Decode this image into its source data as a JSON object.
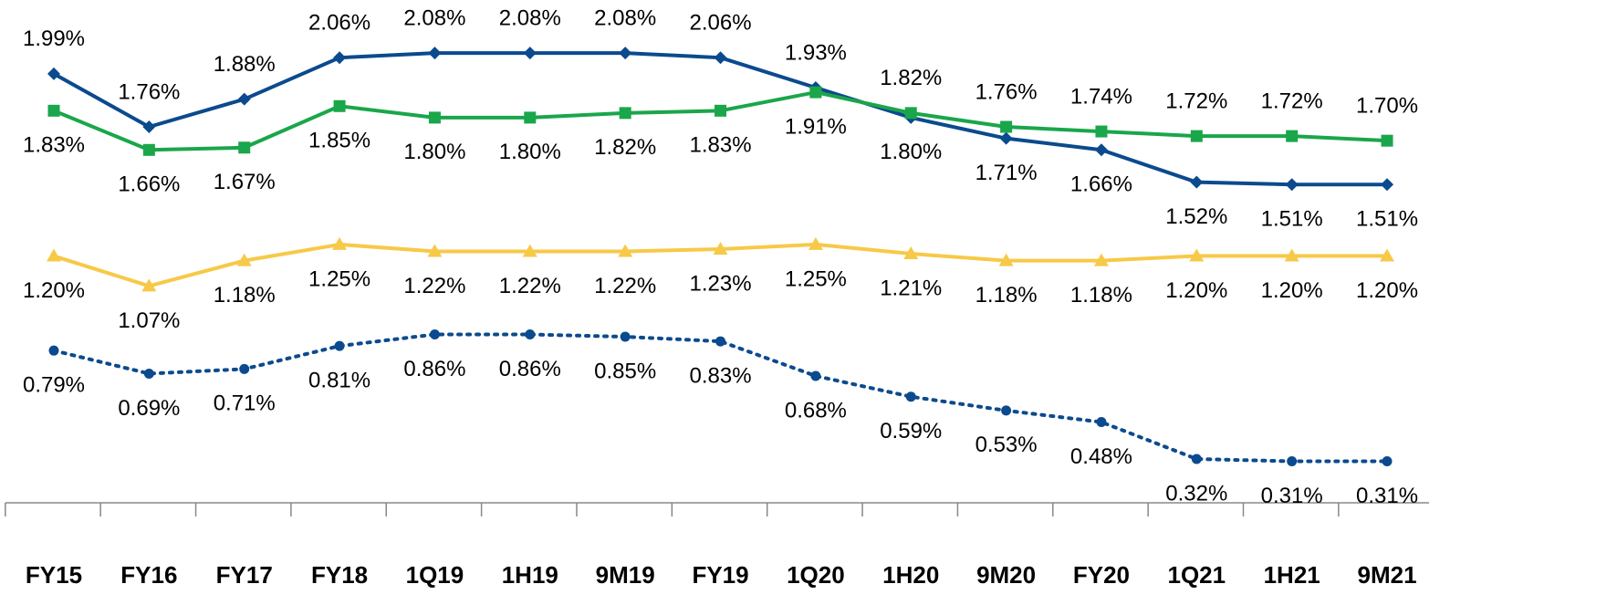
{
  "chart_data": {
    "type": "line",
    "categories": [
      "FY15",
      "FY16",
      "FY17",
      "FY18",
      "1Q19",
      "1H19",
      "9M19",
      "FY19",
      "1Q20",
      "1H20",
      "9M20",
      "FY20",
      "1Q21",
      "1H21",
      "9M21"
    ],
    "ylim": [
      0.13,
      2.31
    ],
    "series": [
      {
        "color": "#0b4a8e",
        "marker": "diamond",
        "dash": "solid",
        "values": [
          1.99,
          1.76,
          1.88,
          2.06,
          2.08,
          2.08,
          2.08,
          2.06,
          1.93,
          1.8,
          1.71,
          1.66,
          1.52,
          1.51,
          1.51
        ],
        "value_labels": [
          "1.99%",
          "1.76%",
          "1.88%",
          "2.06%",
          "2.08%",
          "2.08%",
          "2.08%",
          "2.06%",
          "1.93%",
          "1.80%",
          "1.71%",
          "1.66%",
          "1.52%",
          "1.51%",
          "1.51%"
        ]
      },
      {
        "color": "#1aa64a",
        "marker": "square",
        "dash": "solid",
        "values": [
          1.83,
          1.66,
          1.67,
          1.85,
          1.8,
          1.8,
          1.82,
          1.83,
          1.91,
          1.82,
          1.76,
          1.74,
          1.72,
          1.72,
          1.7
        ],
        "value_labels": [
          "1.83%",
          "1.66%",
          "1.67%",
          "1.85%",
          "1.80%",
          "1.80%",
          "1.82%",
          "1.83%",
          "1.91%",
          "1.82%",
          "1.76%",
          "1.74%",
          "1.72%",
          "1.72%",
          "1.70%"
        ]
      },
      {
        "color": "#f7c948",
        "marker": "triangle",
        "dash": "solid",
        "values": [
          1.2,
          1.07,
          1.18,
          1.25,
          1.22,
          1.22,
          1.22,
          1.23,
          1.25,
          1.21,
          1.18,
          1.18,
          1.2,
          1.2,
          1.2
        ],
        "value_labels": [
          "1.20%",
          "1.07%",
          "1.18%",
          "1.25%",
          "1.22%",
          "1.22%",
          "1.22%",
          "1.23%",
          "1.25%",
          "1.21%",
          "1.18%",
          "1.18%",
          "1.20%",
          "1.20%",
          "1.20%"
        ]
      },
      {
        "color": "#0b4a8e",
        "marker": "circle",
        "dash": "dotted",
        "values": [
          0.79,
          0.69,
          0.71,
          0.81,
          0.86,
          0.86,
          0.85,
          0.83,
          0.68,
          0.59,
          0.53,
          0.48,
          0.32,
          0.31,
          0.31
        ],
        "value_labels": [
          "0.79%",
          "0.69%",
          "0.71%",
          "0.81%",
          "0.86%",
          "0.86%",
          "0.85%",
          "0.83%",
          "0.68%",
          "0.59%",
          "0.53%",
          "0.48%",
          "0.32%",
          "0.31%",
          "0.31%"
        ]
      }
    ]
  }
}
